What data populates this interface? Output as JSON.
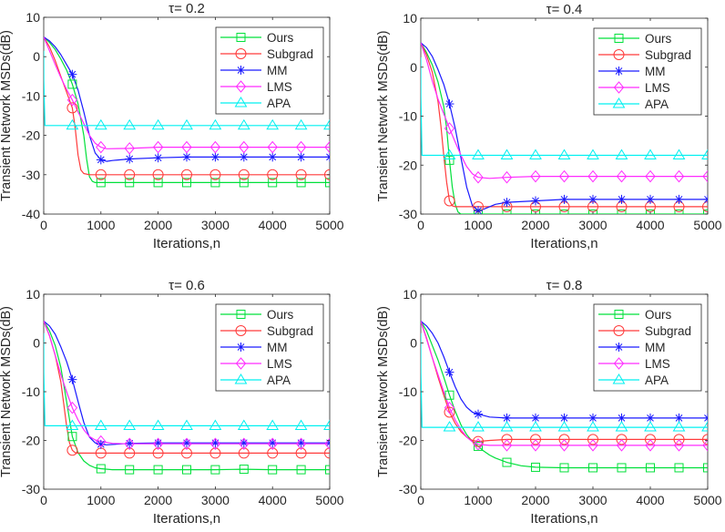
{
  "figure": {
    "ylabel": "Transient Network MSDs(dB)",
    "xlabel": "Iterations,n"
  },
  "chart_data": [
    {
      "type": "line",
      "title": "τ= 0.2",
      "xlabel": "Iterations,n",
      "ylabel": "Transient Network MSDs(dB)",
      "xlim": [
        0,
        5000
      ],
      "ylim": [
        -40,
        10
      ],
      "xticks": [
        0,
        1000,
        2000,
        3000,
        4000,
        5000
      ],
      "yticks": [
        10,
        0,
        -10,
        -20,
        -30,
        -40
      ],
      "legend_position": "top-right",
      "grid": false,
      "series": [
        {
          "name": "Ours",
          "color": "#00e03a",
          "marker": "square",
          "x": [
            0,
            100,
            200,
            300,
            400,
            500,
            600,
            700,
            750,
            800,
            850,
            900,
            1000,
            1500,
            2000,
            2500,
            3000,
            3500,
            4000,
            4500,
            5000
          ],
          "y": [
            5,
            3.6,
            1.8,
            -0.6,
            -3.4,
            -7,
            -12,
            -20,
            -26,
            -30.5,
            -31.7,
            -32,
            -32,
            -32,
            -32,
            -32,
            -32,
            -32,
            -32,
            -32,
            -32
          ]
        },
        {
          "name": "Subgrad",
          "color": "#ff3b3b",
          "marker": "circle",
          "x": [
            0,
            100,
            200,
            300,
            400,
            500,
            550,
            600,
            650,
            700,
            800,
            1000,
            1500,
            2000,
            2500,
            3000,
            3500,
            4000,
            4500,
            5000
          ],
          "y": [
            5,
            2.5,
            -1,
            -5,
            -9,
            -13,
            -18,
            -25,
            -28.8,
            -29.7,
            -30,
            -30,
            -30,
            -30,
            -30,
            -30,
            -30,
            -30,
            -30,
            -30
          ]
        },
        {
          "name": "MM",
          "color": "#1a1aff",
          "marker": "star",
          "x": [
            0,
            100,
            200,
            300,
            400,
            500,
            600,
            700,
            800,
            900,
            1000,
            1100,
            1200,
            1500,
            2000,
            2500,
            3000,
            3500,
            4000,
            4500,
            5000
          ],
          "y": [
            5,
            4,
            2.5,
            0.5,
            -2,
            -4.5,
            -8.5,
            -14,
            -20,
            -24.5,
            -26.2,
            -26.6,
            -26.4,
            -26,
            -25.7,
            -25.5,
            -25.5,
            -25.5,
            -25.5,
            -25.5,
            -25.5
          ]
        },
        {
          "name": "LMS",
          "color": "#ff2bff",
          "marker": "diamond",
          "x": [
            0,
            100,
            200,
            300,
            400,
            500,
            600,
            700,
            800,
            900,
            1000,
            1100,
            1500,
            2000,
            2500,
            3000,
            3500,
            4000,
            4500,
            5000
          ],
          "y": [
            5,
            1.5,
            -2,
            -5.3,
            -8.3,
            -11,
            -14,
            -17,
            -20,
            -22,
            -23,
            -23.4,
            -23.3,
            -23,
            -23,
            -23,
            -23,
            -23,
            -23,
            -23
          ]
        },
        {
          "name": "APA",
          "color": "#00f0f0",
          "marker": "triangle",
          "x": [
            0,
            1,
            20,
            500,
            1000,
            1500,
            2000,
            2500,
            3000,
            3500,
            4000,
            4500,
            5000
          ],
          "y": [
            1.5,
            -6,
            -17.5,
            -17.5,
            -17.5,
            -17.5,
            -17.5,
            -17.5,
            -17.5,
            -17.5,
            -17.5,
            -17.5,
            -17.5
          ]
        }
      ]
    },
    {
      "type": "line",
      "title": "τ= 0.4",
      "xlabel": "Iterations,n",
      "ylabel": "Transient Network MSDs(dB)",
      "xlim": [
        0,
        5000
      ],
      "ylim": [
        -30,
        10
      ],
      "xticks": [
        0,
        1000,
        2000,
        3000,
        4000,
        5000
      ],
      "yticks": [
        10,
        0,
        -10,
        -20,
        -30
      ],
      "legend_position": "top-right",
      "grid": false,
      "series": [
        {
          "name": "Ours",
          "color": "#00e03a",
          "marker": "square",
          "x": [
            0,
            100,
            200,
            300,
            400,
            450,
            500,
            550,
            600,
            650,
            700,
            800,
            1000,
            1500,
            2000,
            2500,
            3000,
            3500,
            4000,
            4500,
            5000
          ],
          "y": [
            5,
            3,
            0.5,
            -3,
            -8,
            -12.5,
            -19,
            -24.5,
            -28,
            -29.6,
            -30,
            -30,
            -30,
            -30,
            -30,
            -30,
            -30,
            -30,
            -30,
            -30,
            -30
          ]
        },
        {
          "name": "Subgrad",
          "color": "#ff3b3b",
          "marker": "circle",
          "x": [
            0,
            100,
            200,
            300,
            350,
            400,
            450,
            500,
            550,
            600,
            1000,
            1500,
            2000,
            2500,
            3000,
            3500,
            4000,
            4500,
            5000
          ],
          "y": [
            5,
            2.5,
            -1,
            -7,
            -12,
            -18,
            -23.5,
            -27.3,
            -28.3,
            -28.5,
            -28.5,
            -28.5,
            -28.5,
            -28.5,
            -28.5,
            -28.5,
            -28.5,
            -28.5,
            -28.5
          ]
        },
        {
          "name": "MM",
          "color": "#1a1aff",
          "marker": "star",
          "x": [
            0,
            100,
            200,
            300,
            400,
            500,
            600,
            700,
            800,
            900,
            1000,
            1100,
            1300,
            1500,
            2000,
            2500,
            3000,
            3500,
            4000,
            4500,
            5000
          ],
          "y": [
            5,
            4,
            2.2,
            -0.5,
            -3.5,
            -7.5,
            -12.5,
            -18.5,
            -24.5,
            -28.3,
            -29.3,
            -29,
            -28,
            -27.6,
            -27.3,
            -27,
            -27,
            -27,
            -27,
            -27,
            -27
          ]
        },
        {
          "name": "LMS",
          "color": "#ff2bff",
          "marker": "diamond",
          "x": [
            0,
            100,
            200,
            300,
            400,
            500,
            600,
            700,
            800,
            900,
            1000,
            1200,
            1500,
            2000,
            2500,
            3000,
            3500,
            4000,
            4500,
            5000
          ],
          "y": [
            5,
            1.5,
            -2.8,
            -6.5,
            -9.5,
            -12.5,
            -15.3,
            -18,
            -20.3,
            -21.8,
            -22.5,
            -22.7,
            -22.5,
            -22.3,
            -22.3,
            -22.3,
            -22.3,
            -22.3,
            -22.3,
            -22.3
          ]
        },
        {
          "name": "APA",
          "color": "#00f0f0",
          "marker": "triangle",
          "x": [
            0,
            1,
            20,
            500,
            1000,
            1500,
            2000,
            2500,
            3000,
            3500,
            4000,
            4500,
            5000
          ],
          "y": [
            2,
            -6,
            -18,
            -18,
            -18,
            -18,
            -18,
            -18,
            -18,
            -18,
            -18,
            -18,
            -18
          ]
        }
      ]
    },
    {
      "type": "line",
      "title": "τ= 0.6",
      "xlabel": "Iterations,n",
      "ylabel": "Transient Network MSDs(dB)",
      "xlim": [
        0,
        5000
      ],
      "ylim": [
        -30,
        10
      ],
      "xticks": [
        0,
        1000,
        2000,
        3000,
        4000,
        5000
      ],
      "yticks": [
        10,
        0,
        -10,
        -20,
        -30
      ],
      "legend_position": "top-right",
      "grid": false,
      "series": [
        {
          "name": "Ours",
          "color": "#00e03a",
          "marker": "square",
          "x": [
            0,
            100,
            200,
            300,
            400,
            500,
            600,
            700,
            800,
            900,
            1000,
            1200,
            1500,
            2000,
            2500,
            3000,
            3500,
            4000,
            4500,
            5000
          ],
          "y": [
            4.5,
            2.5,
            -0.5,
            -5,
            -12,
            -19.2,
            -22.5,
            -24.2,
            -25.1,
            -25.6,
            -25.8,
            -26,
            -26,
            -26,
            -26,
            -26,
            -25.9,
            -26,
            -26,
            -26
          ]
        },
        {
          "name": "Subgrad",
          "color": "#ff3b3b",
          "marker": "circle",
          "x": [
            0,
            100,
            200,
            300,
            350,
            400,
            450,
            500,
            550,
            600,
            1000,
            1500,
            2000,
            2500,
            3000,
            3500,
            4000,
            4500,
            5000
          ],
          "y": [
            4.5,
            1.5,
            -2.5,
            -8,
            -12.5,
            -17,
            -20.5,
            -22,
            -22.5,
            -22.6,
            -22.6,
            -22.6,
            -22.6,
            -22.6,
            -22.6,
            -22.6,
            -22.6,
            -22.6,
            -22.6
          ]
        },
        {
          "name": "MM",
          "color": "#1a1aff",
          "marker": "star",
          "x": [
            0,
            100,
            200,
            300,
            400,
            500,
            600,
            700,
            800,
            900,
            1000,
            1100,
            1500,
            2000,
            2500,
            3000,
            3500,
            4000,
            4500,
            5000
          ],
          "y": [
            4.5,
            3.5,
            1.8,
            -0.8,
            -3.8,
            -7.5,
            -12,
            -16.3,
            -19.3,
            -20.5,
            -20.8,
            -20.9,
            -20.6,
            -20.5,
            -20.5,
            -20.5,
            -20.5,
            -20.5,
            -20.5,
            -20.5
          ]
        },
        {
          "name": "LMS",
          "color": "#ff2bff",
          "marker": "diamond",
          "x": [
            0,
            100,
            200,
            300,
            400,
            500,
            600,
            700,
            800,
            900,
            1000,
            1200,
            1500,
            2000,
            2500,
            3000,
            3500,
            4000,
            4500,
            5000
          ],
          "y": [
            4.5,
            1.5,
            -2.5,
            -6.5,
            -10,
            -13.3,
            -15.8,
            -17.8,
            -19.2,
            -19.9,
            -20.2,
            -20.6,
            -20.7,
            -20.7,
            -20.7,
            -20.7,
            -20.7,
            -20.7,
            -20.7,
            -20.7
          ]
        },
        {
          "name": "APA",
          "color": "#00f0f0",
          "marker": "triangle",
          "x": [
            0,
            1,
            20,
            500,
            1000,
            1500,
            2000,
            2500,
            3000,
            3500,
            4000,
            4500,
            5000
          ],
          "y": [
            2,
            -6,
            -17,
            -17,
            -17,
            -17,
            -17,
            -17,
            -17,
            -17,
            -17,
            -17,
            -17
          ]
        }
      ]
    },
    {
      "type": "line",
      "title": "τ= 0.8",
      "xlabel": "Iterations,n",
      "ylabel": "Transient Network MSDs(dB)",
      "xlim": [
        0,
        5000
      ],
      "ylim": [
        -30,
        10
      ],
      "xticks": [
        0,
        1000,
        2000,
        3000,
        4000,
        5000
      ],
      "yticks": [
        10,
        0,
        -10,
        -20,
        -30
      ],
      "legend_position": "top-right",
      "grid": false,
      "series": [
        {
          "name": "Ours",
          "color": "#00e03a",
          "marker": "square",
          "x": [
            0,
            100,
            200,
            300,
            400,
            500,
            600,
            700,
            800,
            900,
            1000,
            1100,
            1200,
            1300,
            1500,
            1750,
            2000,
            2500,
            3000,
            3500,
            4000,
            4500,
            5000
          ],
          "y": [
            4.5,
            2.5,
            -0.5,
            -3.5,
            -7,
            -10.7,
            -14,
            -16.8,
            -18.8,
            -20.2,
            -21.2,
            -22.2,
            -23,
            -23.6,
            -24.5,
            -25.2,
            -25.5,
            -25.6,
            -25.6,
            -25.6,
            -25.6,
            -25.6,
            -25.6
          ]
        },
        {
          "name": "Subgrad",
          "color": "#ff3b3b",
          "marker": "circle",
          "x": [
            0,
            100,
            200,
            300,
            400,
            500,
            600,
            700,
            800,
            900,
            1000,
            1200,
            1500,
            2000,
            2500,
            3000,
            3500,
            4000,
            4500,
            5000
          ],
          "y": [
            4.5,
            1,
            -3,
            -7,
            -10.7,
            -14.2,
            -16.5,
            -18.2,
            -19.3,
            -20,
            -20.2,
            -20,
            -19.8,
            -19.8,
            -19.8,
            -19.8,
            -19.8,
            -19.8,
            -19.8,
            -19.8
          ]
        },
        {
          "name": "MM",
          "color": "#1a1aff",
          "marker": "star",
          "x": [
            0,
            100,
            200,
            300,
            400,
            500,
            600,
            700,
            800,
            900,
            1000,
            1200,
            1500,
            2000,
            2500,
            3000,
            3500,
            4000,
            4500,
            5000
          ],
          "y": [
            4.5,
            3.5,
            2,
            0,
            -2.8,
            -6,
            -9,
            -11.5,
            -13.2,
            -14.2,
            -14.6,
            -15.2,
            -15.4,
            -15.4,
            -15.4,
            -15.4,
            -15.4,
            -15.4,
            -15.4,
            -15.4
          ]
        },
        {
          "name": "LMS",
          "color": "#ff2bff",
          "marker": "diamond",
          "x": [
            0,
            100,
            200,
            300,
            400,
            500,
            600,
            700,
            800,
            900,
            1000,
            1200,
            1500,
            2000,
            2500,
            3000,
            3500,
            4000,
            4500,
            5000
          ],
          "y": [
            4.5,
            0.8,
            -3,
            -6.5,
            -10,
            -13.3,
            -15.8,
            -17.8,
            -19.3,
            -20.3,
            -20.8,
            -21,
            -21,
            -21,
            -21,
            -21,
            -21,
            -21,
            -21,
            -21
          ]
        },
        {
          "name": "APA",
          "color": "#00f0f0",
          "marker": "triangle",
          "x": [
            0,
            1,
            20,
            500,
            1000,
            1500,
            2000,
            2500,
            3000,
            3500,
            4000,
            4500,
            5000
          ],
          "y": [
            2,
            -6,
            -17.3,
            -17.3,
            -17.3,
            -17.3,
            -17.3,
            -17.3,
            -17.3,
            -17.3,
            -17.3,
            -17.3,
            -17.3
          ]
        }
      ]
    }
  ]
}
